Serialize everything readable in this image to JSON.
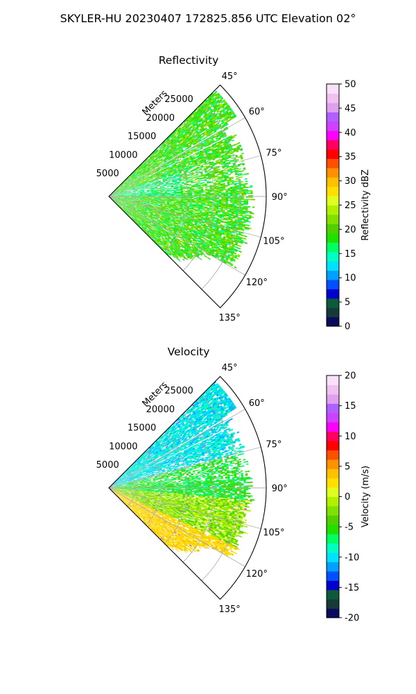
{
  "figure": {
    "title": "SKYLER-HU  20230407  172825.856 UTC Elevation 02°"
  },
  "chart_data": [
    {
      "type": "heatmap",
      "projection": "polar-sector",
      "title": "Reflectivity",
      "azimuth_range_deg": [
        45,
        135
      ],
      "azimuth_ticks": [
        "45°",
        "60°",
        "75°",
        "90°",
        "105°",
        "120°",
        "135°"
      ],
      "range_label": "Meters",
      "range_ticks": [
        5000,
        10000,
        15000,
        20000,
        25000
      ],
      "range_max_m": 30000,
      "grid": true,
      "colorbar": {
        "label": "Reflectivity dBZ",
        "range": [
          0,
          50
        ],
        "ticks": [
          0,
          5,
          10,
          15,
          20,
          25,
          30,
          35,
          40,
          45,
          50
        ],
        "colors": [
          "#0b0b5e",
          "#163a3a",
          "#0b5a3a",
          "#0000cc",
          "#0050ff",
          "#00a0ff",
          "#00e0ff",
          "#00ffc0",
          "#00ff60",
          "#20e000",
          "#50d000",
          "#80e000",
          "#b0f000",
          "#e0ff20",
          "#ffe000",
          "#ffc000",
          "#ff9000",
          "#ff5000",
          "#ff0000",
          "#ff0060",
          "#ff00ff",
          "#d040ff",
          "#b060ff",
          "#e0a0f0",
          "#f0c0f0",
          "#fae0fa"
        ]
      }
    },
    {
      "type": "heatmap",
      "projection": "polar-sector",
      "title": "Velocity",
      "azimuth_range_deg": [
        45,
        135
      ],
      "azimuth_ticks": [
        "45°",
        "60°",
        "75°",
        "90°",
        "105°",
        "120°",
        "135°"
      ],
      "range_label": "Meters",
      "range_ticks": [
        5000,
        10000,
        15000,
        20000,
        25000
      ],
      "range_max_m": 30000,
      "grid": true,
      "colorbar": {
        "label": "Velocity (m/s)",
        "range": [
          -20,
          20
        ],
        "ticks": [
          -20,
          -15,
          -10,
          -5,
          0,
          5,
          10,
          15,
          20
        ],
        "colors": [
          "#0b0b5e",
          "#163a3a",
          "#0b5a3a",
          "#0000cc",
          "#0050ff",
          "#00a0ff",
          "#00e0ff",
          "#00ffc0",
          "#00ff60",
          "#20e000",
          "#50d000",
          "#80e000",
          "#b0f000",
          "#e0ff20",
          "#ffe000",
          "#ffc000",
          "#ff9000",
          "#ff5000",
          "#ff0000",
          "#ff0060",
          "#ff00ff",
          "#d040ff",
          "#b060ff",
          "#e0a0f0",
          "#f0c0f0",
          "#fae0fa"
        ]
      }
    }
  ]
}
